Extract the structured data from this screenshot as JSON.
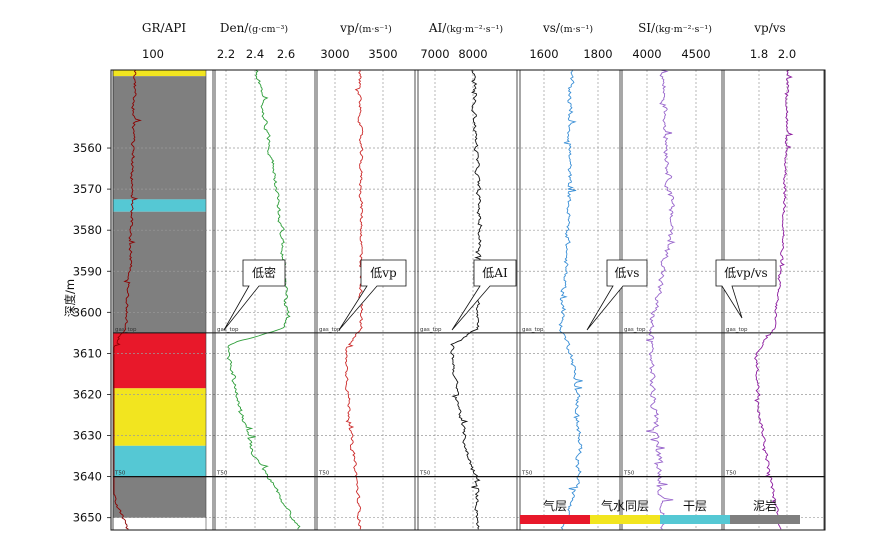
{
  "figure": {
    "depth_label": "深度/m",
    "depth_range": [
      3541,
      3653
    ],
    "depth_ticks": [
      3560,
      3570,
      3580,
      3590,
      3600,
      3610,
      3620,
      3630,
      3640,
      3650
    ],
    "marker_labels": {
      "top": "gas_top",
      "bottom": "T50"
    },
    "marker_depths": {
      "gas_top": 3605,
      "t50": 3640
    }
  },
  "lithology": [
    {
      "name": "yellow",
      "top": 3541,
      "bottom": 3542.5,
      "color": "#f2e51f"
    },
    {
      "name": "gray",
      "top": 3542.5,
      "bottom": 3572.5,
      "color": "#7f7f7f"
    },
    {
      "name": "cyan",
      "top": 3572.5,
      "bottom": 3575.5,
      "color": "#55c8d4"
    },
    {
      "name": "gray",
      "top": 3575.5,
      "bottom": 3605,
      "color": "#7f7f7f"
    },
    {
      "name": "red",
      "top": 3605,
      "bottom": 3618.5,
      "color": "#e8182a"
    },
    {
      "name": "yellow",
      "top": 3618.5,
      "bottom": 3632.5,
      "color": "#f2e51f"
    },
    {
      "name": "cyan",
      "top": 3632.5,
      "bottom": 3640,
      "color": "#55c8d4"
    },
    {
      "name": "gray",
      "top": 3640,
      "bottom": 3650,
      "color": "#7f7f7f"
    }
  ],
  "legend": [
    {
      "label": "气层",
      "color": "#e8182a"
    },
    {
      "label": "气水同层",
      "color": "#f2e51f"
    },
    {
      "label": "干层",
      "color": "#55c8d4"
    },
    {
      "label": "泥岩",
      "color": "#7f7f7f"
    }
  ],
  "chart_data": [
    {
      "type": "line",
      "title": "GR/API",
      "ticks": [
        "100"
      ],
      "color": "#8b0000",
      "x": [
        50,
        150
      ],
      "profile": [
        [
          3541,
          72
        ],
        [
          3590,
          67
        ],
        [
          3604,
          62
        ],
        [
          3610,
          47
        ],
        [
          3620,
          43
        ],
        [
          3640,
          42
        ],
        [
          3653,
          65
        ]
      ]
    },
    {
      "type": "line",
      "title": "Den/(g·cm⁻³)",
      "title_main": "Den/",
      "title_unit": "(g·cm⁻³)",
      "ticks": [
        "2.2",
        "2.4",
        "2.6"
      ],
      "color": "#2e9e3a",
      "x": [
        2.15,
        2.75
      ],
      "profile": [
        [
          3541,
          2.4
        ],
        [
          3560,
          2.48
        ],
        [
          3580,
          2.55
        ],
        [
          3600,
          2.58
        ],
        [
          3604,
          2.55
        ],
        [
          3608,
          2.22
        ],
        [
          3620,
          2.28
        ],
        [
          3635,
          2.38
        ],
        [
          3640,
          2.47
        ],
        [
          3653,
          2.66
        ]
      ]
    },
    {
      "type": "line",
      "title": "vp/(m·s⁻¹)",
      "title_main": "vp/",
      "title_unit": "(m·s⁻¹)",
      "ticks": [
        "3000",
        "3500"
      ],
      "color": "#cc2a2a",
      "x": [
        2800,
        3900
      ],
      "profile": [
        [
          3541,
          3280
        ],
        [
          3580,
          3300
        ],
        [
          3604,
          3290
        ],
        [
          3609,
          3120
        ],
        [
          3630,
          3180
        ],
        [
          3640,
          3240
        ],
        [
          3653,
          3290
        ]
      ]
    },
    {
      "type": "line",
      "title": "AI/(kg·m⁻²·s⁻¹)",
      "title_main": "AI/",
      "title_unit": "(kg·m⁻²·s⁻¹)",
      "ticks": [
        "7000",
        "8000"
      ],
      "color": "#111111",
      "x": [
        6400,
        9200
      ],
      "profile": [
        [
          3541,
          7950
        ],
        [
          3580,
          8150
        ],
        [
          3604,
          8100
        ],
        [
          3608,
          7350
        ],
        [
          3620,
          7500
        ],
        [
          3635,
          7800
        ],
        [
          3640,
          8050
        ],
        [
          3653,
          8100
        ]
      ]
    },
    {
      "type": "line",
      "title": "vs/(m·s⁻¹)",
      "title_main": "vs/",
      "title_unit": "(m·s⁻¹)",
      "ticks": [
        "1600",
        "1800"
      ],
      "color": "#3a8fd6",
      "x": [
        1470,
        2030
      ],
      "profile": [
        [
          3541,
          1755
        ],
        [
          3580,
          1740
        ],
        [
          3604,
          1700
        ],
        [
          3610,
          1760
        ],
        [
          3620,
          1790
        ],
        [
          3640,
          1805
        ],
        [
          3653,
          1700
        ]
      ]
    },
    {
      "type": "line",
      "title": "SI/(kg·m⁻²·s⁻¹)",
      "title_main": "SI/",
      "title_unit": "(kg·m⁻²·s⁻¹)",
      "ticks": [
        "4000",
        "4500"
      ],
      "color": "#9966cc",
      "x": [
        3650,
        4950
      ],
      "profile": [
        [
          3541,
          4180
        ],
        [
          3580,
          4300
        ],
        [
          3604,
          4020
        ],
        [
          3620,
          4050
        ],
        [
          3640,
          4150
        ],
        [
          3653,
          4200
        ]
      ]
    },
    {
      "type": "line",
      "title": "vp/vs",
      "title_main": "vp/vs",
      "title_unit": "",
      "ticks": [
        "1.8",
        "2.0"
      ],
      "color": "#8b1a9e",
      "x": [
        1.6,
        2.1
      ],
      "profile": [
        [
          3541,
          1.92
        ],
        [
          3580,
          1.9
        ],
        [
          3604,
          1.85
        ],
        [
          3610,
          1.76
        ],
        [
          3625,
          1.78
        ],
        [
          3640,
          1.83
        ],
        [
          3653,
          1.88
        ]
      ]
    }
  ],
  "callouts": [
    {
      "track": 1,
      "label": "低密"
    },
    {
      "track": 2,
      "label": "低vp"
    },
    {
      "track": 3,
      "label": "低AI"
    },
    {
      "track": 4,
      "label": "低vs"
    },
    {
      "track": 6,
      "label": "低vp/vs"
    }
  ]
}
